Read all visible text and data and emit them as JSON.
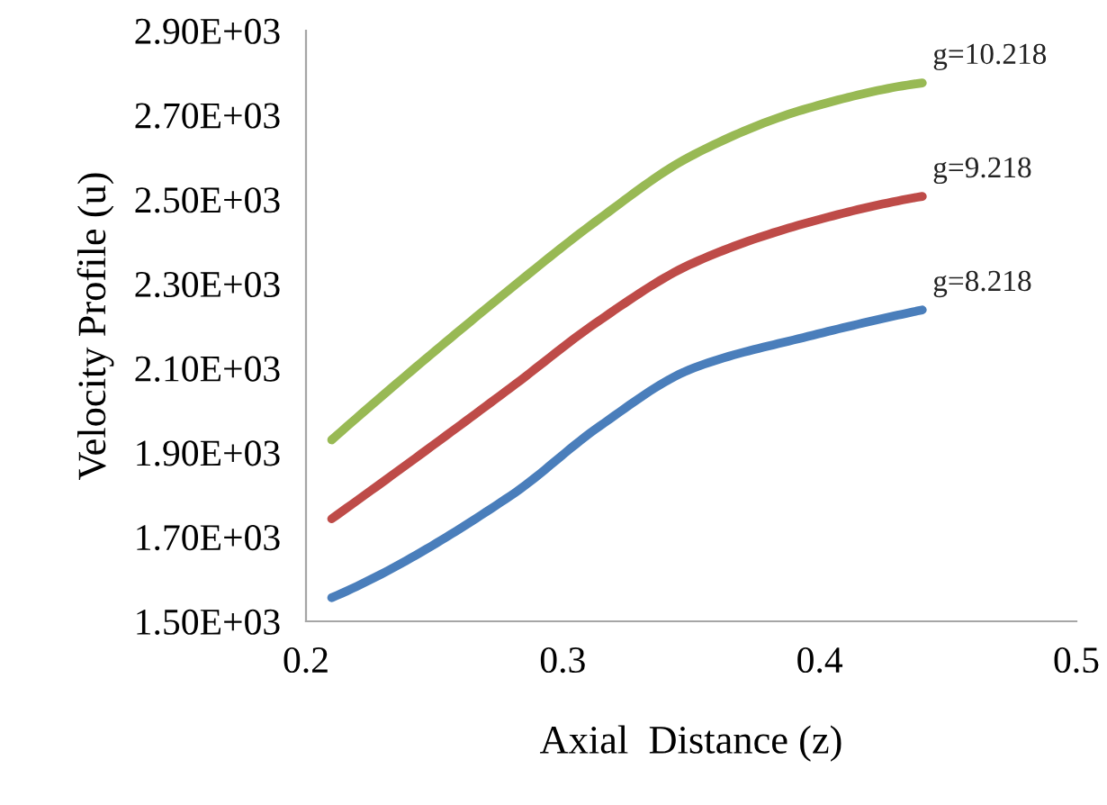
{
  "chart_data": {
    "type": "line",
    "xlabel": "Axial  Distance (z)",
    "ylabel": "Velocity Profile (u)",
    "x": [
      0.21,
      0.28,
      0.314,
      0.35,
      0.396,
      0.44
    ],
    "series": [
      {
        "name": "g=8.218",
        "color": "#4a7ebb",
        "values": [
          1556,
          1799,
          1961,
          2098,
          2176,
          2238
        ]
      },
      {
        "name": "g=9.218",
        "color": "#be4b48",
        "values": [
          1743,
          2055,
          2212,
          2347,
          2446,
          2507
        ]
      },
      {
        "name": "g=10.218",
        "color": "#98b954",
        "values": [
          1930,
          2290,
          2453,
          2603,
          2717,
          2776
        ]
      }
    ],
    "xlim": [
      0.2,
      0.5
    ],
    "xticks": [
      0.2,
      0.3,
      0.4,
      0.5
    ],
    "ylim": [
      1500,
      2900
    ],
    "yticks": [
      {
        "value": 1500,
        "label": "1.50E+03"
      },
      {
        "value": 1700,
        "label": "1.70E+03"
      },
      {
        "value": 1900,
        "label": "1.90E+03"
      },
      {
        "value": 2100,
        "label": "2.10E+03"
      },
      {
        "value": 2300,
        "label": "2.30E+03"
      },
      {
        "value": 2500,
        "label": "2.50E+03"
      },
      {
        "value": 2700,
        "label": "2.70E+03"
      },
      {
        "value": 2900,
        "label": "2.90E+03"
      }
    ],
    "grid": false,
    "marker": "none",
    "line_style": "solid"
  }
}
